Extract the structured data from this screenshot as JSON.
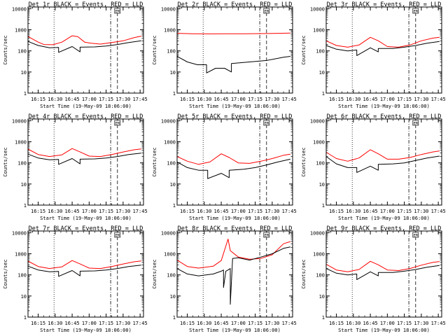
{
  "legend_tag": "EM",
  "chart_data": [
    {
      "type": "line",
      "title": "Det 1r BLACK = Events, RED = LLD",
      "xlabel": "Start Time (19-May-09 18:06:00)",
      "ylabel": "Counts/sec",
      "xlim": [
        "16:06",
        "17:48"
      ],
      "ylim": [
        1,
        12000
      ],
      "yscale": "log",
      "x_tick_labels": [
        "16:15",
        "16:30",
        "16:45",
        "17:00",
        "17:15",
        "17:30",
        "17:45"
      ],
      "y_tick_labels": [
        "1",
        "10",
        "100",
        "1000",
        "10000"
      ],
      "markers": {
        "dotted": "16:29",
        "dashdot": "17:19",
        "dashed": "17:25"
      },
      "series": [
        {
          "color": "#ff0000",
          "x": [
            "16:06",
            "16:15",
            "16:20",
            "16:28",
            "16:36",
            "16:45",
            "16:50",
            "16:56",
            "17:02",
            "17:10",
            "17:20",
            "17:30",
            "17:40",
            "17:46"
          ],
          "y": [
            480,
            260,
            200,
            195,
            260,
            520,
            470,
            260,
            230,
            210,
            250,
            300,
            430,
            500
          ]
        },
        {
          "color": "#000000",
          "x": [
            "16:06",
            "16:15",
            "16:25",
            "16:33",
            "16:33",
            "16:45",
            "16:52",
            "16:52",
            "17:05",
            "17:15",
            "17:25",
            "17:35",
            "17:46"
          ],
          "y": [
            280,
            180,
            140,
            145,
            85,
            160,
            90,
            150,
            155,
            170,
            200,
            250,
            300
          ]
        }
      ]
    },
    {
      "type": "line",
      "title": "Det 2r BLACK = Events, RED = LLD",
      "xlabel": "Start Time (19-May-09 18:06:00)",
      "ylabel": "Counts/sec",
      "xlim": [
        "16:06",
        "17:48"
      ],
      "ylim": [
        1,
        12000
      ],
      "yscale": "log",
      "x_tick_labels": [
        "16:15",
        "16:30",
        "16:45",
        "17:00",
        "17:15",
        "17:30",
        "17:45"
      ],
      "y_tick_labels": [
        "1",
        "10",
        "100",
        "1000",
        "10000"
      ],
      "markers": {
        "dotted": "16:29",
        "dashdot": "17:19",
        "dashed": "17:25"
      },
      "series": [
        {
          "color": "#ff0000",
          "x": [
            "16:06",
            "16:20",
            "16:35",
            "16:50",
            "17:05",
            "17:20",
            "17:35",
            "17:46"
          ],
          "y": [
            680,
            650,
            640,
            650,
            650,
            660,
            680,
            700
          ]
        },
        {
          "color": "#000000",
          "x": [
            "16:06",
            "16:15",
            "16:24",
            "16:32",
            "16:32",
            "16:40",
            "16:48",
            "16:54",
            "16:54",
            "17:10",
            "17:25",
            "17:40",
            "17:46"
          ],
          "y": [
            55,
            30,
            22,
            22,
            9,
            15,
            15,
            10,
            25,
            30,
            35,
            50,
            55
          ]
        }
      ]
    },
    {
      "type": "line",
      "title": "Det 3r BLACK = Events, RED = LLD",
      "xlabel": "Start Time (19-May-09 18:06:00)",
      "ylabel": "Counts/sec",
      "xlim": [
        "16:06",
        "17:48"
      ],
      "ylim": [
        1,
        12000
      ],
      "yscale": "log",
      "x_tick_labels": [
        "16:15",
        "16:30",
        "16:45",
        "17:00",
        "17:15",
        "17:30",
        "17:45"
      ],
      "y_tick_labels": [
        "1",
        "10",
        "100",
        "1000",
        "10000"
      ],
      "markers": {
        "dotted": "16:29",
        "dashdot": "17:19",
        "dashed": "17:25"
      },
      "series": [
        {
          "color": "#ff0000",
          "x": [
            "16:06",
            "16:15",
            "16:25",
            "16:35",
            "16:45",
            "16:52",
            "17:00",
            "17:10",
            "17:20",
            "17:30",
            "17:40",
            "17:46"
          ],
          "y": [
            300,
            180,
            150,
            190,
            440,
            300,
            160,
            150,
            190,
            300,
            400,
            440
          ]
        },
        {
          "color": "#000000",
          "x": [
            "16:06",
            "16:15",
            "16:25",
            "16:33",
            "16:33",
            "16:45",
            "16:52",
            "16:52",
            "17:05",
            "17:15",
            "17:25",
            "17:35",
            "17:46"
          ],
          "y": [
            180,
            120,
            100,
            110,
            60,
            140,
            90,
            130,
            130,
            150,
            180,
            230,
            280
          ]
        }
      ]
    },
    {
      "type": "line",
      "title": "Det 4r BLACK = Events, RED = LLD",
      "xlabel": "Start Time (19-May-09 18:06:00)",
      "ylabel": "Counts/sec",
      "xlim": [
        "16:06",
        "17:48"
      ],
      "ylim": [
        1,
        12000
      ],
      "yscale": "log",
      "x_tick_labels": [
        "16:15",
        "16:30",
        "16:45",
        "17:00",
        "17:15",
        "17:30",
        "17:45"
      ],
      "y_tick_labels": [
        "1",
        "10",
        "100",
        "1000",
        "10000"
      ],
      "markers": {
        "dotted": "16:29",
        "dashdot": "17:19",
        "dashed": "17:25"
      },
      "series": [
        {
          "color": "#ff0000",
          "x": [
            "16:06",
            "16:15",
            "16:25",
            "16:36",
            "16:45",
            "16:52",
            "17:00",
            "17:10",
            "17:20",
            "17:30",
            "17:40",
            "17:46"
          ],
          "y": [
            450,
            250,
            200,
            240,
            480,
            330,
            210,
            200,
            250,
            330,
            420,
            460
          ]
        },
        {
          "color": "#000000",
          "x": [
            "16:06",
            "16:15",
            "16:25",
            "16:33",
            "16:33",
            "16:45",
            "16:52",
            "16:52",
            "17:05",
            "17:15",
            "17:25",
            "17:35",
            "17:46"
          ],
          "y": [
            260,
            170,
            140,
            145,
            85,
            160,
            90,
            150,
            155,
            170,
            200,
            250,
            290
          ]
        }
      ]
    },
    {
      "type": "line",
      "title": "Det 5r BLACK = Events, RED = LLD",
      "xlabel": "Start Time (19-May-09 18:06:00)",
      "ylabel": "Counts/sec",
      "xlim": [
        "16:06",
        "17:48"
      ],
      "ylim": [
        1,
        12000
      ],
      "yscale": "log",
      "x_tick_labels": [
        "16:15",
        "16:30",
        "16:45",
        "17:00",
        "17:15",
        "17:30",
        "17:45"
      ],
      "y_tick_labels": [
        "1",
        "10",
        "100",
        "1000",
        "10000"
      ],
      "markers": {
        "dotted": "16:29",
        "dashdot": "17:19",
        "dashed": "17:25"
      },
      "series": [
        {
          "color": "#ff0000",
          "x": [
            "16:06",
            "16:15",
            "16:25",
            "16:35",
            "16:45",
            "16:52",
            "17:00",
            "17:10",
            "17:20",
            "17:30",
            "17:40",
            "17:46"
          ],
          "y": [
            200,
            120,
            85,
            110,
            270,
            180,
            100,
            95,
            120,
            160,
            230,
            260
          ]
        },
        {
          "color": "#000000",
          "x": [
            "16:06",
            "16:15",
            "16:25",
            "16:33",
            "16:33",
            "16:45",
            "16:52",
            "16:52",
            "17:05",
            "17:15",
            "17:25",
            "17:35",
            "17:46"
          ],
          "y": [
            110,
            60,
            45,
            45,
            18,
            32,
            20,
            45,
            50,
            60,
            80,
            110,
            150
          ]
        }
      ]
    },
    {
      "type": "line",
      "title": "Det 6r BLACK = Events, RED = LLD",
      "xlabel": "Start Time (19-May-09 18:06:00)",
      "ylabel": "Counts/sec",
      "xlim": [
        "16:06",
        "17:48"
      ],
      "ylim": [
        1,
        12000
      ],
      "yscale": "log",
      "x_tick_labels": [
        "16:15",
        "16:30",
        "16:45",
        "17:00",
        "17:15",
        "17:30",
        "17:45"
      ],
      "y_tick_labels": [
        "1",
        "10",
        "100",
        "1000",
        "10000"
      ],
      "markers": {
        "dotted": "16:29",
        "dashdot": "17:19",
        "dashed": "17:25"
      },
      "series": [
        {
          "color": "#ff0000",
          "x": [
            "16:06",
            "16:15",
            "16:25",
            "16:35",
            "16:45",
            "16:52",
            "17:00",
            "17:10",
            "17:20",
            "17:30",
            "17:40",
            "17:46"
          ],
          "y": [
            320,
            160,
            120,
            170,
            420,
            270,
            150,
            150,
            180,
            250,
            330,
            370
          ]
        },
        {
          "color": "#000000",
          "x": [
            "16:06",
            "16:15",
            "16:25",
            "16:33",
            "16:33",
            "16:45",
            "16:52",
            "16:52",
            "17:05",
            "17:15",
            "17:25",
            "17:35",
            "17:46"
          ],
          "y": [
            200,
            90,
            60,
            60,
            35,
            70,
            45,
            85,
            90,
            100,
            130,
            170,
            210
          ]
        }
      ]
    },
    {
      "type": "line",
      "title": "Det 7r BLACK = Events, RED = LLD",
      "xlabel": "Start Time (19-May-09 18:06:00)",
      "ylabel": "Counts/sec",
      "xlim": [
        "16:06",
        "17:48"
      ],
      "ylim": [
        1,
        12000
      ],
      "yscale": "log",
      "x_tick_labels": [
        "16:15",
        "16:30",
        "16:45",
        "17:00",
        "17:15",
        "17:30",
        "17:45"
      ],
      "y_tick_labels": [
        "1",
        "10",
        "100",
        "1000",
        "10000"
      ],
      "markers": {
        "dotted": "16:29",
        "dashdot": "17:19",
        "dashed": "17:25"
      },
      "series": [
        {
          "color": "#ff0000",
          "x": [
            "16:06",
            "16:15",
            "16:25",
            "16:36",
            "16:45",
            "16:52",
            "17:00",
            "17:10",
            "17:20",
            "17:30",
            "17:40",
            "17:46"
          ],
          "y": [
            450,
            250,
            200,
            240,
            480,
            330,
            210,
            200,
            250,
            330,
            420,
            460
          ]
        },
        {
          "color": "#000000",
          "x": [
            "16:06",
            "16:15",
            "16:25",
            "16:33",
            "16:33",
            "16:45",
            "16:52",
            "16:52",
            "17:05",
            "17:15",
            "17:25",
            "17:35",
            "17:46"
          ],
          "y": [
            260,
            170,
            140,
            145,
            85,
            160,
            90,
            150,
            155,
            170,
            200,
            250,
            290
          ]
        }
      ]
    },
    {
      "type": "line",
      "title": "Det 8r BLACK = Events, RED = LLD",
      "xlabel": "Start Time (19-May-09 18:06:00)",
      "ylabel": "Counts/sec",
      "xlim": [
        "16:06",
        "17:48"
      ],
      "ylim": [
        1,
        12000
      ],
      "yscale": "log",
      "x_tick_labels": [
        "16:15",
        "16:30",
        "16:45",
        "17:00",
        "17:15",
        "17:30",
        "17:45"
      ],
      "y_tick_labels": [
        "1",
        "10",
        "100",
        "1000",
        "10000"
      ],
      "markers": {
        "dotted": "16:29",
        "dashdot": "17:19",
        "dashed": "17:25"
      },
      "series": [
        {
          "color": "#ff0000",
          "x": [
            "16:06",
            "16:15",
            "16:25",
            "16:38",
            "16:45",
            "16:51",
            "16:53",
            "17:00",
            "17:10",
            "17:20",
            "17:30",
            "17:40",
            "17:46"
          ],
          "y": [
            500,
            250,
            210,
            260,
            480,
            5000,
            1400,
            700,
            550,
            600,
            900,
            3000,
            3800
          ]
        },
        {
          "color": "#000000",
          "x": [
            "16:06",
            "16:15",
            "16:25",
            "16:38",
            "16:45",
            "16:47",
            "16:47",
            "16:49",
            "16:51",
            "16:53",
            "16:53",
            "16:55",
            "17:00",
            "17:10",
            "17:20",
            "17:30",
            "17:40",
            "17:46"
          ],
          "y": [
            200,
            110,
            90,
            110,
            150,
            170,
            25,
            150,
            170,
            200,
            4,
            600,
            650,
            500,
            700,
            1000,
            1800,
            2100
          ]
        }
      ]
    },
    {
      "type": "line",
      "title": "Det 9r BLACK = Events, RED = LLD",
      "xlabel": "Start Time (19-May-09 18:06:00)",
      "ylabel": "Counts/sec",
      "xlim": [
        "16:06",
        "17:48"
      ],
      "ylim": [
        1,
        12000
      ],
      "yscale": "log",
      "x_tick_labels": [
        "16:15",
        "16:30",
        "16:45",
        "17:00",
        "17:15",
        "17:30",
        "17:45"
      ],
      "y_tick_labels": [
        "1",
        "10",
        "100",
        "1000",
        "10000"
      ],
      "markers": {
        "dotted": "16:29",
        "dashdot": "17:19",
        "dashed": "17:25"
      },
      "series": [
        {
          "color": "#ff0000",
          "x": [
            "16:06",
            "16:15",
            "16:25",
            "16:35",
            "16:45",
            "16:52",
            "17:00",
            "17:10",
            "17:20",
            "17:30",
            "17:40",
            "17:46"
          ],
          "y": [
            320,
            170,
            140,
            180,
            440,
            300,
            170,
            160,
            200,
            290,
            390,
            430
          ]
        },
        {
          "color": "#000000",
          "x": [
            "16:06",
            "16:15",
            "16:25",
            "16:33",
            "16:33",
            "16:45",
            "16:52",
            "16:52",
            "17:05",
            "17:15",
            "17:25",
            "17:35",
            "17:46"
          ],
          "y": [
            200,
            120,
            100,
            110,
            60,
            140,
            90,
            130,
            130,
            150,
            180,
            230,
            280
          ]
        }
      ]
    }
  ]
}
